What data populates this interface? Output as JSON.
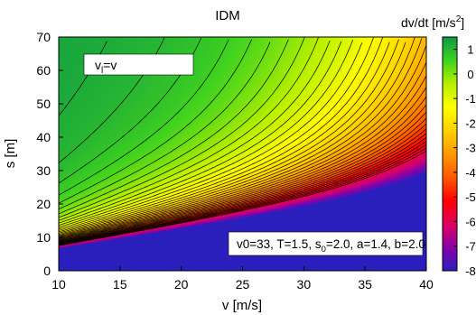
{
  "chart_data": {
    "type": "heatmap",
    "title": "IDM",
    "xlabel": "v [m/s]",
    "ylabel": "s [m]",
    "colorbar_label": {
      "main": "dv/dt [m/s",
      "sup": "2",
      "end": "]"
    },
    "xlim": [
      10,
      40
    ],
    "ylim": [
      0,
      70
    ],
    "zlim": [
      -8,
      1.5
    ],
    "xticks": [
      "10",
      "15",
      "20",
      "25",
      "30",
      "35",
      "40"
    ],
    "yticks": [
      "0",
      "10",
      "20",
      "30",
      "40",
      "50",
      "60",
      "70"
    ],
    "colorbar_ticks": [
      "1",
      "0",
      "-1",
      "-2",
      "-3",
      "-4",
      "-5",
      "-6",
      "-7",
      "-8"
    ],
    "colorbar_tick_values": [
      1,
      0,
      -1,
      -2,
      -3,
      -4,
      -5,
      -6,
      -7,
      -8
    ],
    "colormap": [
      "#2a1fbd",
      "#8a00a8",
      "#e00060",
      "#ff0000",
      "#ff5a00",
      "#ff9a00",
      "#ffd200",
      "#ffff00",
      "#b6f000",
      "#3fd21f",
      "#0f9a45"
    ],
    "contour_step": 0.2,
    "grid": false,
    "model": {
      "v0": 33,
      "T": 1.5,
      "s0": 2.0,
      "a": 1.4,
      "b": 2.0
    },
    "annotations": [
      {
        "id": "vl",
        "text_main": "v",
        "text_sub": "l",
        "text_rest": "=v",
        "position": "upper-left"
      },
      {
        "id": "params",
        "parts": [
          {
            "t": "v0=33, T=1.5, s",
            "sub": false
          },
          {
            "t": "0",
            "sub": true
          },
          {
            "t": "=2.0, a=1.4, b=2.0",
            "sub": false
          }
        ],
        "position": "lower-right"
      }
    ]
  }
}
